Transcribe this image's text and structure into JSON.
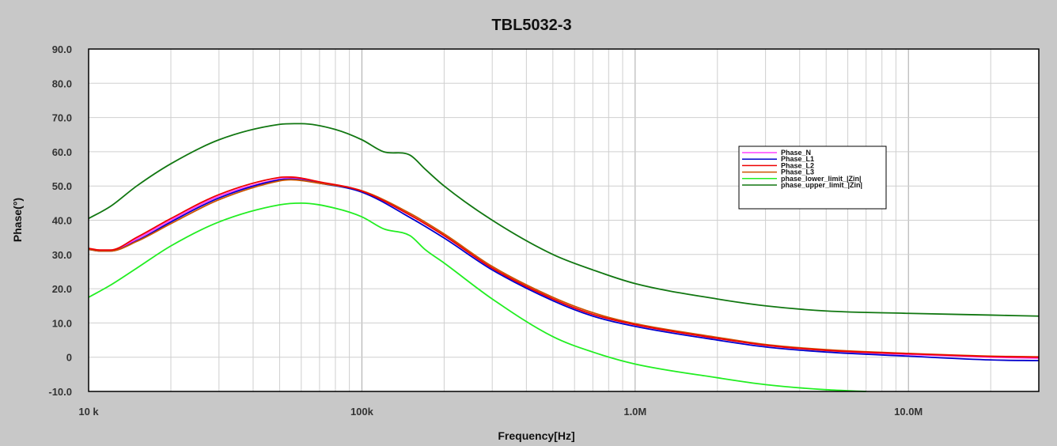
{
  "chart_data": {
    "type": "line",
    "title": "TBL5032-3",
    "xlabel": "Frequency[Hz]",
    "ylabel": "Phase(°)",
    "x_scale": "log",
    "xlim": [
      10000,
      30000000
    ],
    "ylim": [
      -10,
      90
    ],
    "grid": true,
    "legend_position": "top-right",
    "x_ticks": [
      {
        "value": 10000,
        "label": "10 k"
      },
      {
        "value": 100000,
        "label": "100k"
      },
      {
        "value": 1000000,
        "label": "1.0M"
      },
      {
        "value": 10000000,
        "label": "10.0M"
      }
    ],
    "y_ticks": [
      {
        "value": 90,
        "label": "90.0"
      },
      {
        "value": 80,
        "label": "80.0"
      },
      {
        "value": 70,
        "label": "70.0"
      },
      {
        "value": 60,
        "label": "60.0"
      },
      {
        "value": 50,
        "label": "50.0"
      },
      {
        "value": 40,
        "label": "40.0"
      },
      {
        "value": 30,
        "label": "30.0"
      },
      {
        "value": 20,
        "label": "20.0"
      },
      {
        "value": 10,
        "label": "10.0"
      },
      {
        "value": 0,
        "label": "0"
      },
      {
        "value": -10,
        "label": "-10.0"
      }
    ],
    "series": [
      {
        "name": "Phase_N",
        "color": "#ff40ff",
        "x": [
          10000,
          11000,
          12000,
          15000,
          20000,
          30000,
          50000,
          55000,
          70000,
          100000,
          150000,
          200000,
          300000,
          500000,
          700000,
          1000000,
          2000000,
          3000000,
          5000000,
          10000000,
          20000000,
          30000000
        ],
        "y": [
          31.5,
          31.0,
          31.0,
          34.5,
          40.0,
          47.0,
          52.0,
          52.3,
          51.0,
          48.5,
          41.5,
          35.5,
          26.0,
          17.0,
          12.5,
          9.5,
          5.5,
          3.5,
          2.0,
          0.8,
          0.0,
          -0.3
        ]
      },
      {
        "name": "Phase_L1",
        "color": "#0000cc",
        "x": [
          10000,
          11000,
          12000,
          15000,
          20000,
          30000,
          50000,
          55000,
          70000,
          100000,
          150000,
          200000,
          300000,
          500000,
          700000,
          1000000,
          2000000,
          3000000,
          5000000,
          10000000,
          20000000,
          30000000
        ],
        "y": [
          31.5,
          31.0,
          31.0,
          34.0,
          39.5,
          46.5,
          51.8,
          52.0,
          50.8,
          48.2,
          40.8,
          34.8,
          25.5,
          16.5,
          12.0,
          9.0,
          5.0,
          3.0,
          1.5,
          0.3,
          -0.8,
          -1.0
        ]
      },
      {
        "name": "Phase_L2",
        "color": "#ee0000",
        "x": [
          10000,
          11000,
          12000,
          15000,
          20000,
          30000,
          50000,
          55000,
          70000,
          100000,
          150000,
          200000,
          300000,
          500000,
          700000,
          1000000,
          2000000,
          3000000,
          5000000,
          10000000,
          20000000,
          30000000
        ],
        "y": [
          31.8,
          31.3,
          31.3,
          35.0,
          40.5,
          47.5,
          52.5,
          52.6,
          51.2,
          48.5,
          41.5,
          35.5,
          26.0,
          17.0,
          12.5,
          9.5,
          5.5,
          3.5,
          2.0,
          1.0,
          0.2,
          0.0
        ]
      },
      {
        "name": "Phase_L3",
        "color": "#cc5500",
        "x": [
          10000,
          11000,
          12000,
          15000,
          20000,
          30000,
          50000,
          55000,
          70000,
          100000,
          150000,
          200000,
          300000,
          500000,
          700000,
          1000000,
          2000000,
          3000000,
          5000000,
          10000000,
          20000000,
          30000000
        ],
        "y": [
          31.5,
          31.0,
          31.0,
          33.8,
          39.0,
          46.0,
          51.5,
          51.8,
          50.8,
          48.6,
          42.0,
          36.0,
          26.5,
          17.5,
          13.0,
          9.8,
          5.8,
          3.7,
          2.2,
          1.1,
          0.3,
          0.1
        ]
      },
      {
        "name": "phase_lower_limit_|Zin|",
        "color": "#22ee22",
        "x": [
          10000,
          12000,
          15000,
          20000,
          30000,
          50000,
          60000,
          80000,
          100000,
          120000,
          150000,
          170000,
          200000,
          300000,
          500000,
          700000,
          1000000,
          2000000,
          3000000,
          5000000,
          7000000
        ],
        "y": [
          17.5,
          21.0,
          26.0,
          32.5,
          39.5,
          44.5,
          45.0,
          43.5,
          41.0,
          37.5,
          35.5,
          31.5,
          27.5,
          17.0,
          6.0,
          1.5,
          -2.0,
          -6.0,
          -8.0,
          -9.5,
          -10.0
        ]
      },
      {
        "name": "phase_upper_limit_|Zin|",
        "color": "#117711",
        "x": [
          10000,
          12000,
          15000,
          20000,
          30000,
          50000,
          60000,
          80000,
          100000,
          120000,
          150000,
          170000,
          200000,
          300000,
          500000,
          700000,
          1000000,
          2000000,
          3000000,
          5000000,
          10000000,
          20000000,
          30000000
        ],
        "y": [
          40.5,
          44.0,
          50.0,
          56.5,
          63.5,
          68.0,
          68.2,
          66.5,
          63.5,
          60.0,
          59.0,
          55.0,
          50.0,
          40.0,
          30.0,
          25.5,
          21.5,
          17.0,
          15.0,
          13.5,
          12.8,
          12.3,
          12.0
        ]
      }
    ]
  }
}
